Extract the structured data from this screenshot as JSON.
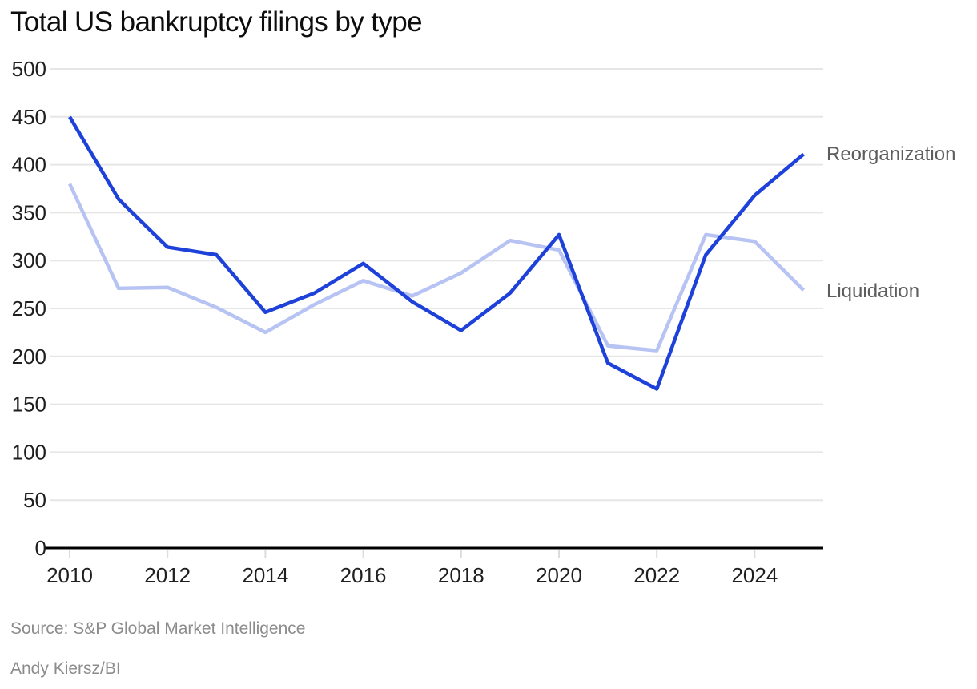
{
  "title": "Total US bankruptcy filings by type",
  "legend": [
    {
      "label": "Reorganization",
      "color": "#1d41d9"
    },
    {
      "label": "Liquidation",
      "color": "#b7c3f2"
    }
  ],
  "footer": {
    "source": "Source: S&P Global Market Intelligence",
    "credit": "Andy Kiersz/BI"
  },
  "colors": {
    "reorganization_line": "#1d41d9",
    "liquidation_line": "#b7c3f2",
    "gridline": "#e6e6e6",
    "axis_line": "#000000",
    "tick_mark": "#dcdcdc",
    "axis_label": "#1f1f1f",
    "series_label": "#5d5d5d",
    "source_text": "#8c8c8c"
  },
  "chart_data": {
    "type": "line",
    "title": "Total US bankruptcy filings by type",
    "x": [
      2010,
      2011,
      2012,
      2013,
      2014,
      2015,
      2016,
      2017,
      2018,
      2019,
      2020,
      2021,
      2022,
      2023,
      2024,
      2025
    ],
    "series": [
      {
        "name": "Reorganization",
        "color": "#1d41d9",
        "values": [
          450,
          364,
          314,
          306,
          246,
          266,
          297,
          257,
          227,
          266,
          327,
          193,
          166,
          306,
          368,
          411
        ]
      },
      {
        "name": "Liquidation",
        "color": "#b7c3f2",
        "values": [
          380,
          271,
          272,
          251,
          225,
          254,
          279,
          263,
          287,
          321,
          311,
          211,
          206,
          327,
          320,
          269
        ]
      }
    ],
    "xlabel": "",
    "ylabel": "",
    "ylim": [
      0,
      500
    ],
    "xlim": [
      2010,
      2025
    ],
    "yticks": [
      0,
      50,
      100,
      150,
      200,
      250,
      300,
      350,
      400,
      450,
      500
    ],
    "xticks": [
      2010,
      2012,
      2014,
      2016,
      2018,
      2020,
      2022,
      2024
    ],
    "grid": true,
    "legend_position": "right-of-line-ends"
  }
}
